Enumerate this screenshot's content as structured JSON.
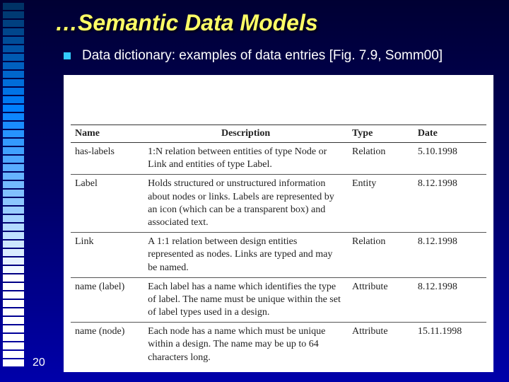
{
  "slide": {
    "title": "…Semantic Data Models",
    "bullet": "Data dictionary: examples of data entries [Fig. 7.9, Somm00]",
    "page_number": "20"
  },
  "stripe": {
    "colors": [
      "#003366",
      "#003a73",
      "#004080",
      "#00468c",
      "#004d99",
      "#0053a6",
      "#005ab2",
      "#0060bf",
      "#0066cc",
      "#006dd9",
      "#0073e6",
      "#0079f2",
      "#0080ff",
      "#0d86ff",
      "#1a8cff",
      "#2693ff",
      "#3399ff",
      "#40a0ff",
      "#4da6ff",
      "#59acff",
      "#66b3ff",
      "#73b9ff",
      "#80c0ff",
      "#8cc6ff",
      "#99ccff",
      "#a6d3ff",
      "#b3d9ff",
      "#bfdfff",
      "#cce6ff",
      "#d9ecff",
      "#e6f2ff",
      "#f2f9ff",
      "#ffffff",
      "#ffffff",
      "#ffffff",
      "#ffffff",
      "#ffffff",
      "#ffffff",
      "#ffffff",
      "#ffffff",
      "#ffffff",
      "#ffffff",
      "#ffffff"
    ],
    "count": 43
  },
  "table": {
    "headers": {
      "c1": "Name",
      "c2": "Description",
      "c3": "Type",
      "c4": "Date"
    },
    "rows": [
      {
        "name": "has-labels",
        "desc": "1:N relation between entities of type Node or Link and entities of type Label.",
        "type": "Relation",
        "date": "5.10.1998"
      },
      {
        "name": "Label",
        "desc": "Holds structured or unstructured information about nodes or links. Labels are represented by an icon (which can be a transparent box) and associated text.",
        "type": "Entity",
        "date": "8.12.1998"
      },
      {
        "name": "Link",
        "desc": "A 1:1 relation between design entities represented as nodes. Links are typed and may be named.",
        "type": "Relation",
        "date": "8.12.1998"
      },
      {
        "name": "name (label)",
        "desc": "Each label has a name which identifies the type of label. The name must be unique within the set of label types used in a design.",
        "type": "Attribute",
        "date": "8.12.1998"
      },
      {
        "name": "name (node)",
        "desc": "Each node has a name which must be unique within a design. The name may be up to 64 characters long.",
        "type": "Attribute",
        "date": "15.11.1998"
      }
    ]
  }
}
